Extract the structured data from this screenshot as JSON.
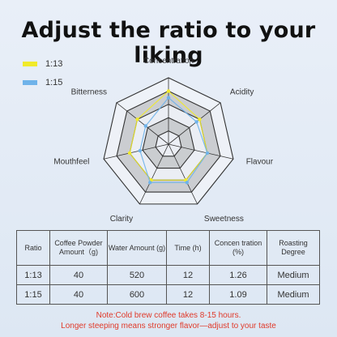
{
  "title": "Adjust the ratio to your liking",
  "colors": {
    "series1": "#f0ea2a",
    "series2": "#6fb3ea",
    "grid": "#333333",
    "band": "#c7c9cc",
    "note": "#e03a2a"
  },
  "chart_data": {
    "type": "radar",
    "axes": [
      "Concentration",
      "Acidity",
      "Flavour",
      "Sweetness",
      "Clarity",
      "Mouthfeel",
      "Bitterness"
    ],
    "levels": 5,
    "range": [
      0,
      5
    ],
    "series": [
      {
        "name": "1:13",
        "values": [
          4.0,
          3.0,
          3.0,
          3.0,
          3.0,
          3.0,
          3.0
        ]
      },
      {
        "name": "1:15",
        "values": [
          3.5,
          2.7,
          3.0,
          3.2,
          3.2,
          2.2,
          2.2
        ]
      }
    ]
  },
  "table": {
    "headers": [
      "Ratio",
      "Coffee Powder Amount（g)",
      "Water Amount (g)",
      "Time (h)",
      "Concen tration (%)",
      "Roasting Degree"
    ],
    "rows": [
      [
        "1:13",
        "40",
        "520",
        "12",
        "1.26",
        "Medium"
      ],
      [
        "1:15",
        "40",
        "600",
        "12",
        "1.09",
        "Medium"
      ]
    ]
  },
  "note": {
    "line1": "Note:Cold brew coffee takes 8-15 hours.",
    "line2": "Longer steeping means stronger flavor—adjust to your taste"
  }
}
